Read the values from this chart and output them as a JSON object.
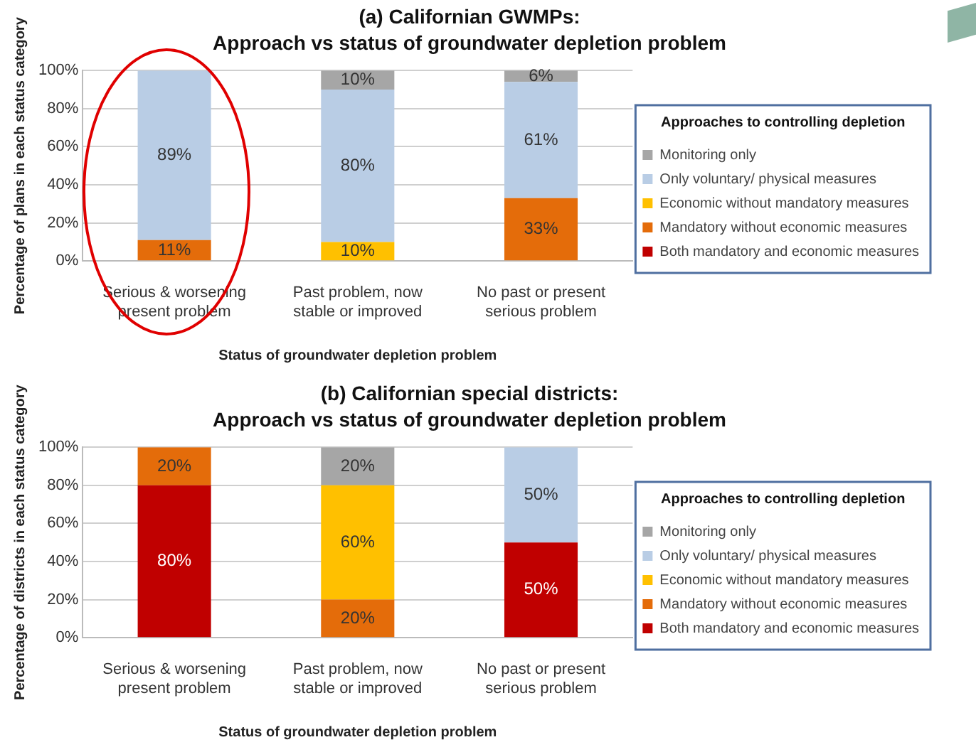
{
  "chart_data": [
    {
      "type": "bar",
      "title": "(a) Californian GWMPs:",
      "subtitle": "Approach vs status of groundwater depletion problem",
      "xlabel": "Status of groundwater depletion problem",
      "ylabel": "Percentage of plans in each status category",
      "legend_title": "Approaches to controlling depletion",
      "categories": [
        "Serious & worsening present problem",
        "Past problem, now stable or improved",
        "No past or present serious problem"
      ],
      "stacked": true,
      "ylim": [
        0,
        100
      ],
      "yticks": [
        {
          "value": 0,
          "label": "0%"
        },
        {
          "value": 20,
          "label": "20%"
        },
        {
          "value": 40,
          "label": "40%"
        },
        {
          "value": 60,
          "label": "60%"
        },
        {
          "value": 80,
          "label": "80%"
        },
        {
          "value": 100,
          "label": "100%"
        }
      ],
      "grid": "y",
      "legend": "right",
      "series": [
        {
          "name": "Both mandatory and economic measures",
          "color": "#c00000",
          "values": [
            0,
            0,
            0
          ],
          "value_labels": [
            null,
            null,
            null
          ]
        },
        {
          "name": "Mandatory without economic measures",
          "color": "#e46c0a",
          "values": [
            11,
            0,
            33
          ],
          "value_labels": [
            "11%",
            null,
            "33%"
          ]
        },
        {
          "name": "Economic without mandatory measures",
          "color": "#ffc000",
          "values": [
            0,
            10,
            0
          ],
          "value_labels": [
            null,
            "10%",
            null
          ]
        },
        {
          "name": "Only voluntary/ physical measures",
          "color": "#b9cde5",
          "values": [
            89,
            80,
            61
          ],
          "value_labels": [
            "89%",
            "80%",
            "61%"
          ]
        },
        {
          "name": "Monitoring only",
          "color": "#a6a6a6",
          "values": [
            0,
            10,
            6
          ],
          "value_labels": [
            null,
            "10%",
            "6%"
          ]
        }
      ]
    },
    {
      "type": "bar",
      "title": "(b) Californian special districts:",
      "subtitle": "Approach vs status of groundwater depletion problem",
      "xlabel": "Status of groundwater depletion problem",
      "ylabel": "Percentage of districts in each status category",
      "legend_title": "Approaches to controlling depletion",
      "categories": [
        "Serious & worsening present problem",
        "Past problem, now stable or improved",
        "No past or present serious problem"
      ],
      "stacked": true,
      "ylim": [
        0,
        100
      ],
      "yticks": [
        {
          "value": 0,
          "label": "0%"
        },
        {
          "value": 20,
          "label": "20%"
        },
        {
          "value": 40,
          "label": "40%"
        },
        {
          "value": 60,
          "label": "60%"
        },
        {
          "value": 80,
          "label": "80%"
        },
        {
          "value": 100,
          "label": "100%"
        }
      ],
      "grid": "y",
      "legend": "right",
      "series": [
        {
          "name": "Both mandatory and economic measures",
          "color": "#c00000",
          "values": [
            80,
            0,
            50
          ],
          "value_labels": [
            "80%",
            null,
            "50%"
          ]
        },
        {
          "name": "Mandatory without economic measures",
          "color": "#e46c0a",
          "values": [
            20,
            20,
            0
          ],
          "value_labels": [
            "20%",
            "20%",
            null
          ]
        },
        {
          "name": "Economic without mandatory measures",
          "color": "#ffc000",
          "values": [
            0,
            60,
            0
          ],
          "value_labels": [
            null,
            "60%",
            null
          ]
        },
        {
          "name": "Only voluntary/ physical measures",
          "color": "#b9cde5",
          "values": [
            0,
            0,
            50
          ],
          "value_labels": [
            null,
            null,
            "50%"
          ]
        },
        {
          "name": "Monitoring only",
          "color": "#a6a6a6",
          "values": [
            0,
            20,
            0
          ],
          "value_labels": [
            null,
            "20%",
            null
          ]
        }
      ]
    }
  ]
}
